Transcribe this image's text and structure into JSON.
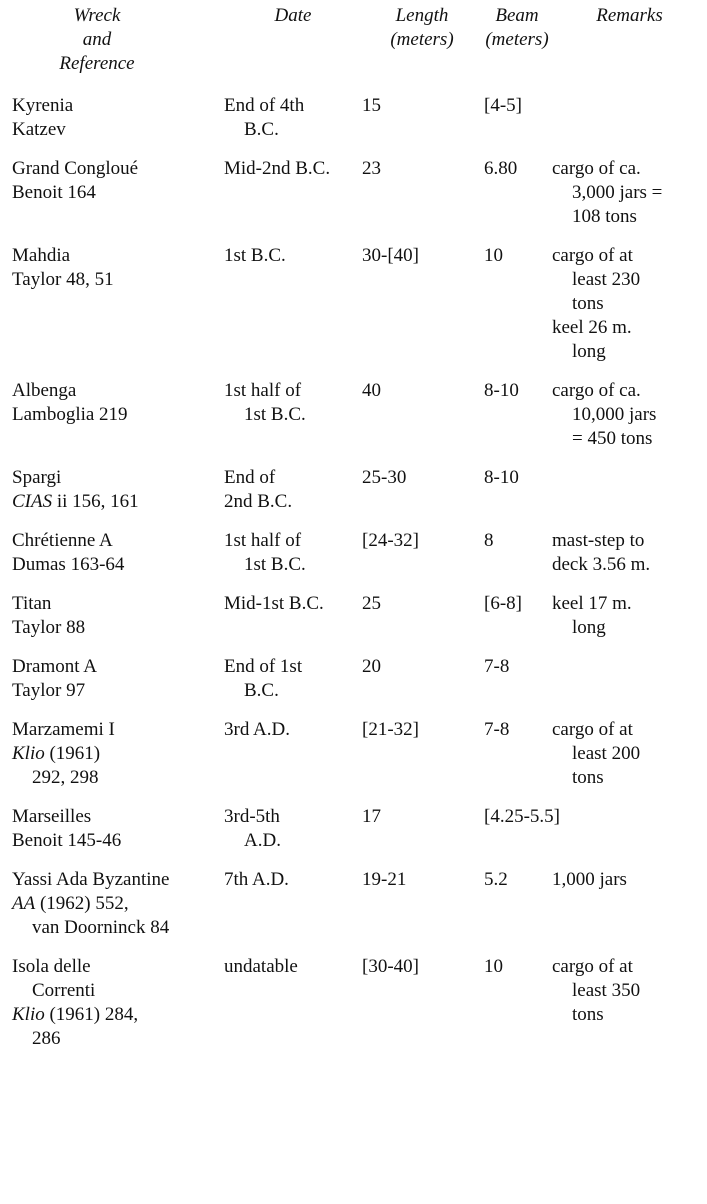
{
  "header": {
    "columns": [
      [
        "Wreck",
        "and",
        "Reference"
      ],
      [
        "Date"
      ],
      [
        "Length",
        "(meters)"
      ],
      [
        "Beam",
        "(meters)"
      ],
      [
        "Remarks"
      ]
    ]
  },
  "rows": [
    [
      [
        "Kyrenia",
        "Katzev"
      ],
      [
        "End of 4th",
        "B.C."
      ],
      [
        "15"
      ],
      [
        "[4-5]"
      ],
      []
    ],
    [
      [
        "Grand Congloué",
        "Benoit 164"
      ],
      [
        "Mid-2nd B.C."
      ],
      [
        "23"
      ],
      [
        "6.80"
      ],
      [
        "cargo of ca.",
        "3,000 jars =",
        "108 tons"
      ]
    ],
    [
      [
        "Mahdia",
        "Taylor 48, 51"
      ],
      [
        "1st B.C."
      ],
      [
        "30-[40]"
      ],
      [
        "10"
      ],
      [
        "cargo of at",
        "least 230",
        "tons",
        "keel 26 m.",
        "long"
      ]
    ],
    [
      [
        "Albenga",
        "Lamboglia 219"
      ],
      [
        "1st half of",
        "1st B.C."
      ],
      [
        "40"
      ],
      [
        "8-10"
      ],
      [
        "cargo of ca.",
        "10,000 jars",
        "= 450 tons"
      ]
    ],
    [
      [
        "Spargi",
        {
          "italic": "CIAS",
          "text": " ii 156, 161"
        }
      ],
      [
        "End of",
        "2nd B.C."
      ],
      [
        "25-30"
      ],
      [
        "8-10"
      ],
      []
    ],
    [
      [
        "Chrétienne A",
        "Dumas 163-64"
      ],
      [
        "1st half of",
        "1st B.C."
      ],
      [
        "[24-32]"
      ],
      [
        "8"
      ],
      [
        "mast-step to",
        "deck 3.56 m."
      ]
    ],
    [
      [
        "Titan",
        "Taylor 88"
      ],
      [
        "Mid-1st B.C."
      ],
      [
        "25"
      ],
      [
        "[6-8]"
      ],
      [
        "keel 17 m.",
        "long"
      ]
    ],
    [
      [
        "Dramont A",
        "Taylor 97"
      ],
      [
        "End of 1st",
        "B.C."
      ],
      [
        "20"
      ],
      [
        "7-8"
      ],
      []
    ],
    [
      [
        "Marzamemi I",
        {
          "italic": "Klio",
          "text": " (1961)"
        },
        "292, 298"
      ],
      [
        "3rd A.D."
      ],
      [
        "[21-32]"
      ],
      [
        "7-8"
      ],
      [
        "cargo of at",
        "least 200",
        "tons"
      ]
    ],
    [
      [
        "Marseilles",
        "Benoit 145-46"
      ],
      [
        "3rd-5th",
        "A.D."
      ],
      [
        "17"
      ],
      [
        "[4.25-5.5]"
      ],
      []
    ],
    [
      [
        "Yassi Ada Byzantine",
        {
          "italic": "AA",
          "text": " (1962) 552,"
        },
        "van Doorninck 84"
      ],
      [
        "7th A.D."
      ],
      [
        "19-21"
      ],
      [
        "5.2"
      ],
      [
        "1,000 jars"
      ]
    ],
    [
      [
        "Isola delle",
        "Correnti",
        {
          "italic": "Klio",
          "text": " (1961) 284,"
        },
        "286"
      ],
      [
        "undatable"
      ],
      [
        "[30-40]"
      ],
      [
        "10"
      ],
      [
        "cargo of at",
        "least 350",
        "tons"
      ]
    ]
  ]
}
